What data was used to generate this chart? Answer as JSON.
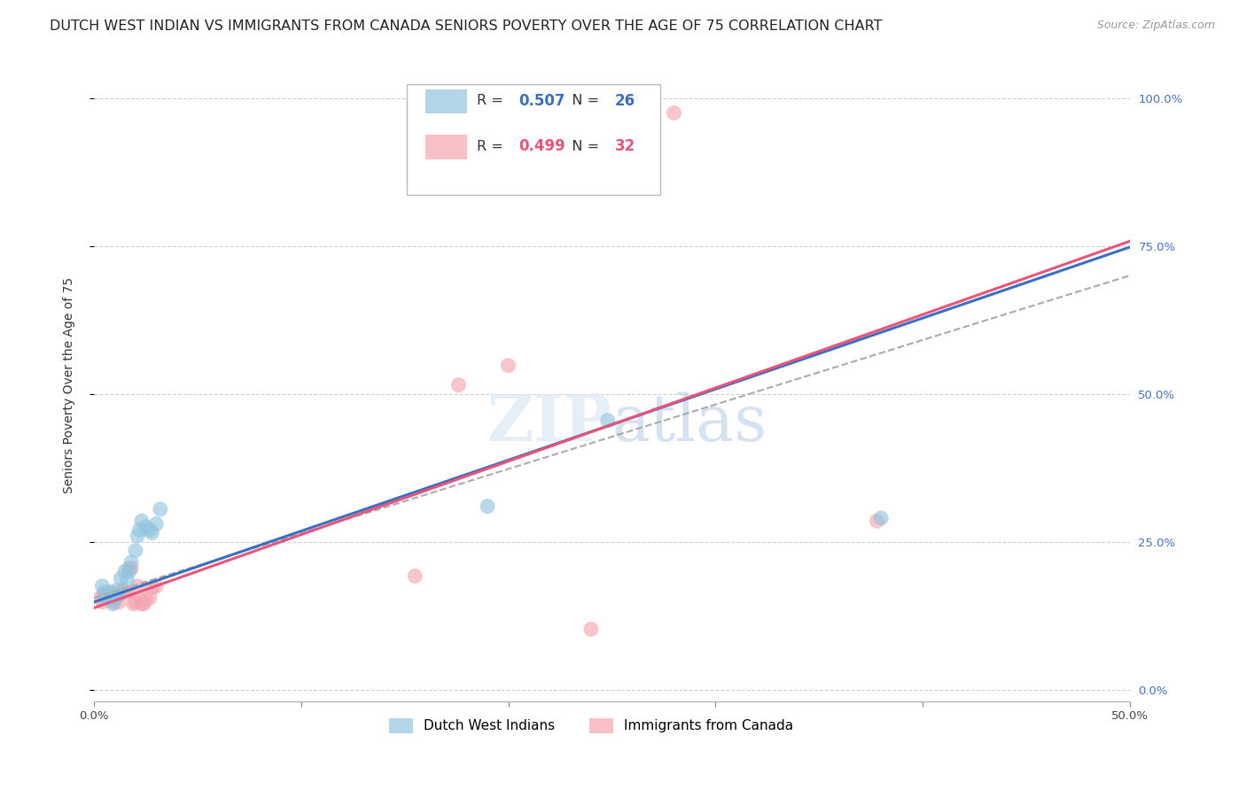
{
  "title": "DUTCH WEST INDIAN VS IMMIGRANTS FROM CANADA SENIORS POVERTY OVER THE AGE OF 75 CORRELATION CHART",
  "source": "Source: ZipAtlas.com",
  "ylabel": "Seniors Poverty Over the Age of 75",
  "xlim": [
    0.0,
    0.5
  ],
  "ylim": [
    -0.02,
    1.05
  ],
  "ytick_labels_right": [
    "0.0%",
    "25.0%",
    "50.0%",
    "75.0%",
    "100.0%"
  ],
  "ytick_positions_right": [
    0.0,
    0.25,
    0.5,
    0.75,
    1.0
  ],
  "r_blue": 0.507,
  "n_blue": 26,
  "r_pink": 0.499,
  "n_pink": 32,
  "legend_label_blue": "Dutch West Indians",
  "legend_label_pink": "Immigrants from Canada",
  "watermark": "ZIPatlas",
  "blue_color": "#92c5de",
  "pink_color": "#f4a6b0",
  "blue_line_color": "#3a6fbf",
  "pink_line_color": "#e8547a",
  "gray_dash_color": "#aaaaaa",
  "blue_line": [
    0.0,
    0.148,
    0.5,
    0.748
  ],
  "pink_line": [
    0.0,
    0.138,
    0.5,
    0.758
  ],
  "gray_dash_line": [
    0.0,
    0.155,
    0.5,
    0.7
  ],
  "blue_scatter": [
    [
      0.004,
      0.175
    ],
    [
      0.005,
      0.165
    ],
    [
      0.006,
      0.155
    ],
    [
      0.007,
      0.155
    ],
    [
      0.008,
      0.165
    ],
    [
      0.009,
      0.145
    ],
    [
      0.01,
      0.155
    ],
    [
      0.011,
      0.168
    ],
    [
      0.012,
      0.16
    ],
    [
      0.013,
      0.188
    ],
    [
      0.015,
      0.2
    ],
    [
      0.016,
      0.185
    ],
    [
      0.017,
      0.2
    ],
    [
      0.018,
      0.215
    ],
    [
      0.02,
      0.235
    ],
    [
      0.021,
      0.26
    ],
    [
      0.022,
      0.27
    ],
    [
      0.023,
      0.285
    ],
    [
      0.025,
      0.275
    ],
    [
      0.027,
      0.27
    ],
    [
      0.028,
      0.265
    ],
    [
      0.03,
      0.28
    ],
    [
      0.032,
      0.305
    ],
    [
      0.19,
      0.31
    ],
    [
      0.248,
      0.455
    ],
    [
      0.38,
      0.29
    ]
  ],
  "pink_scatter": [
    [
      0.003,
      0.155
    ],
    [
      0.004,
      0.148
    ],
    [
      0.005,
      0.16
    ],
    [
      0.006,
      0.158
    ],
    [
      0.007,
      0.152
    ],
    [
      0.008,
      0.155
    ],
    [
      0.009,
      0.162
    ],
    [
      0.01,
      0.148
    ],
    [
      0.011,
      0.158
    ],
    [
      0.012,
      0.148
    ],
    [
      0.013,
      0.165
    ],
    [
      0.014,
      0.168
    ],
    [
      0.015,
      0.165
    ],
    [
      0.016,
      0.165
    ],
    [
      0.017,
      0.205
    ],
    [
      0.018,
      0.205
    ],
    [
      0.019,
      0.145
    ],
    [
      0.02,
      0.148
    ],
    [
      0.021,
      0.175
    ],
    [
      0.022,
      0.155
    ],
    [
      0.023,
      0.145
    ],
    [
      0.024,
      0.145
    ],
    [
      0.025,
      0.152
    ],
    [
      0.027,
      0.155
    ],
    [
      0.028,
      0.172
    ],
    [
      0.03,
      0.175
    ],
    [
      0.155,
      0.192
    ],
    [
      0.176,
      0.515
    ],
    [
      0.2,
      0.548
    ],
    [
      0.24,
      0.102
    ],
    [
      0.378,
      0.285
    ],
    [
      0.28,
      0.975
    ]
  ],
  "grid_color": "#d0d0d0",
  "bg_color": "#ffffff",
  "title_fontsize": 11.5,
  "label_fontsize": 10,
  "tick_fontsize": 9.5,
  "source_fontsize": 9
}
